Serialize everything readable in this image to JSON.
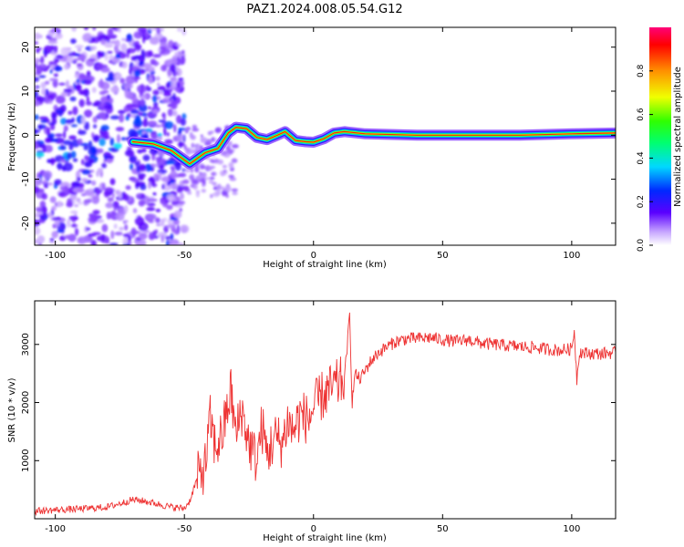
{
  "title": "PAZ1.2024.008.05.54.G12",
  "chart_data": [
    {
      "type": "heatmap",
      "xlabel": "Height of straight line (km)",
      "ylabel": "Frequency (Hz)",
      "xlim": [
        -108,
        117
      ],
      "ylim": [
        -25,
        24.5
      ],
      "xticks": [
        -100,
        -50,
        0,
        50,
        100
      ],
      "yticks": [
        -20,
        -10,
        0,
        10,
        20
      ],
      "colorbar": {
        "label": "Normalized spectral amplitude",
        "range": [
          0,
          1
        ],
        "ticks": [
          0.0,
          0.2,
          0.4,
          0.6,
          0.8
        ]
      },
      "ridge": [
        {
          "x": -70,
          "y": -1.5
        },
        {
          "x": -62,
          "y": -2.0
        },
        {
          "x": -55,
          "y": -3.5
        },
        {
          "x": -48,
          "y": -6.5
        },
        {
          "x": -42,
          "y": -4.0
        },
        {
          "x": -37,
          "y": -3.0
        },
        {
          "x": -33,
          "y": 0.5
        },
        {
          "x": -30,
          "y": 1.8
        },
        {
          "x": -26,
          "y": 1.5
        },
        {
          "x": -22,
          "y": -0.5
        },
        {
          "x": -18,
          "y": -1.0
        },
        {
          "x": -14,
          "y": 0.0
        },
        {
          "x": -11,
          "y": 0.8
        },
        {
          "x": -7,
          "y": -1.2
        },
        {
          "x": -3,
          "y": -1.5
        },
        {
          "x": 0,
          "y": -1.6
        },
        {
          "x": 4,
          "y": -0.8
        },
        {
          "x": 8,
          "y": 0.5
        },
        {
          "x": 12,
          "y": 0.8
        },
        {
          "x": 20,
          "y": 0.3
        },
        {
          "x": 40,
          "y": 0.0
        },
        {
          "x": 60,
          "y": 0.0
        },
        {
          "x": 80,
          "y": 0.0
        },
        {
          "x": 100,
          "y": 0.3
        },
        {
          "x": 117,
          "y": 0.5
        }
      ]
    },
    {
      "type": "line",
      "xlabel": "Height of straight line (km)",
      "ylabel": "SNR (10 * v/v)",
      "xlim": [
        -108,
        117
      ],
      "ylim": [
        0,
        3750
      ],
      "xticks": [
        -100,
        -50,
        0,
        50,
        100
      ],
      "yticks": [
        1000,
        2000,
        3000
      ],
      "series": [
        {
          "color": "#ee3333",
          "x": [
            -108,
            -100,
            -90,
            -80,
            -75,
            -70,
            -65,
            -60,
            -55,
            -50,
            -48,
            -45,
            -42,
            -40,
            -38,
            -35,
            -32,
            -30,
            -28,
            -25,
            -22,
            -20,
            -18,
            -15,
            -12,
            -10,
            -8,
            -5,
            -2,
            0,
            3,
            6,
            9,
            12,
            14,
            15,
            16,
            18,
            20,
            22,
            25,
            28,
            32,
            36,
            40,
            45,
            50,
            55,
            60,
            65,
            70,
            75,
            80,
            85,
            90,
            95,
            100,
            101,
            102,
            103,
            105,
            110,
            117
          ],
          "y": [
            130,
            150,
            170,
            200,
            260,
            330,
            300,
            250,
            200,
            180,
            300,
            700,
            900,
            1700,
            1200,
            1500,
            2200,
            1400,
            1900,
            1300,
            1000,
            1600,
            1100,
            1400,
            1300,
            1700,
            1500,
            1800,
            1700,
            1900,
            2100,
            2200,
            2300,
            2400,
            3500,
            2000,
            2500,
            2400,
            2550,
            2700,
            2850,
            2950,
            3050,
            3100,
            3100,
            3120,
            3080,
            3050,
            3080,
            3020,
            3000,
            2980,
            2960,
            2950,
            2920,
            2900,
            2920,
            3250,
            2400,
            2880,
            2850,
            2840,
            2860
          ]
        }
      ]
    }
  ]
}
